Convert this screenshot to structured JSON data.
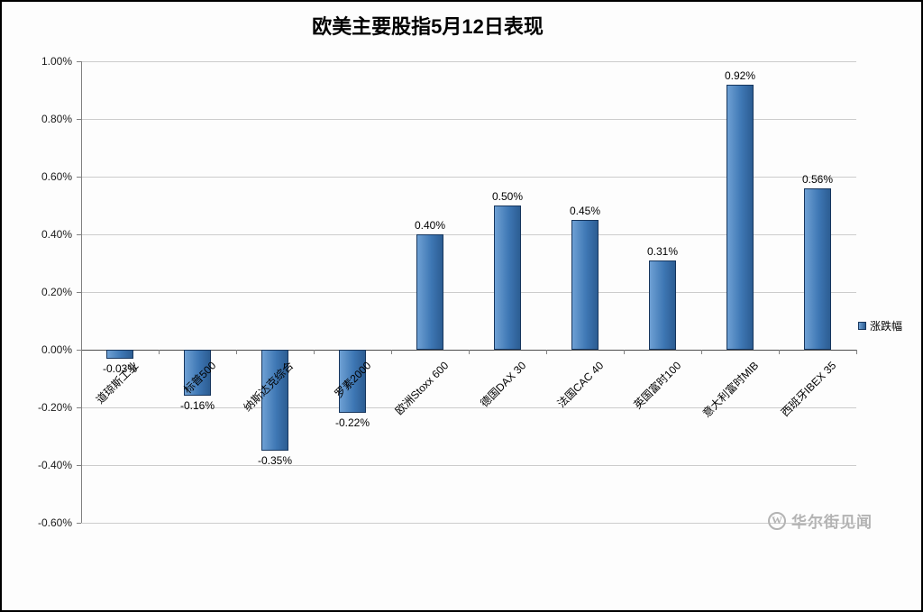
{
  "chart_data": {
    "type": "bar",
    "title": "欧美主要股指5月12日表现",
    "categories": [
      "道琼斯工业",
      "标普500",
      "纳斯达克综合",
      "罗素2000",
      "欧洲Stoxx 600",
      "德国DAX 30",
      "法国CAC 40",
      "英国富时100",
      "意大利富时MIB",
      "西班牙IBEX 35"
    ],
    "values": [
      -0.03,
      -0.16,
      -0.35,
      -0.22,
      0.4,
      0.5,
      0.45,
      0.31,
      0.92,
      0.56
    ],
    "value_labels": [
      "-0.03%",
      "-0.16%",
      "-0.35%",
      "-0.22%",
      "0.40%",
      "0.50%",
      "0.45%",
      "0.31%",
      "0.92%",
      "0.56%"
    ],
    "series_name": "涨跌幅",
    "legend": [
      "涨跌幅"
    ],
    "legend_position": "right",
    "ylim": [
      -0.6,
      1.0
    ],
    "ytick_step": 0.2,
    "ytick_labels": [
      "1.00%",
      "0.80%",
      "0.60%",
      "0.40%",
      "0.20%",
      "0.00%",
      "-0.20%",
      "-0.40%",
      "-0.60%"
    ],
    "grid": true,
    "bar_color": "#3e77b4",
    "bar_border_color": "#17365d"
  },
  "watermark": {
    "icon": "W",
    "text": "华尔街见闻"
  }
}
